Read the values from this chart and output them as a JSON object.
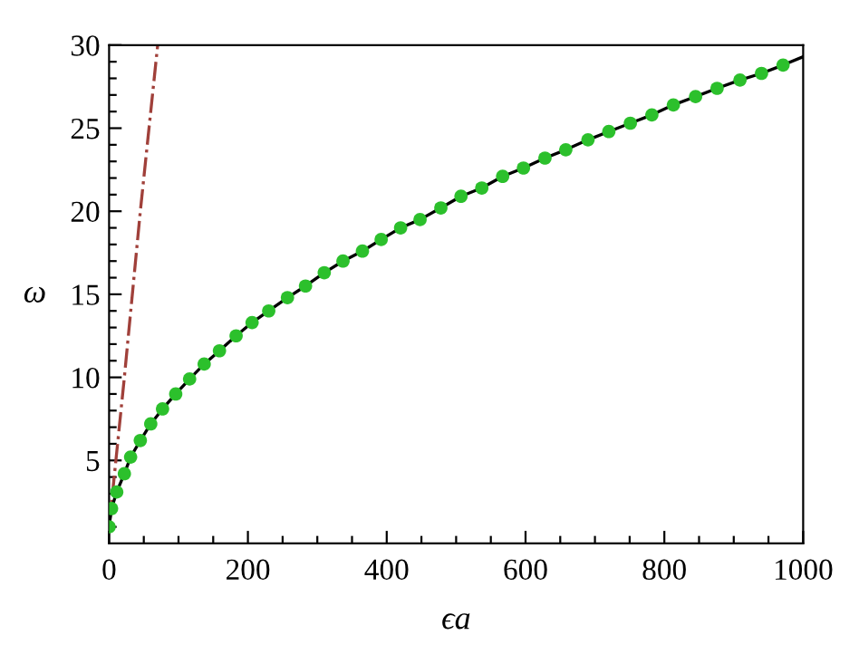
{
  "chart_data": {
    "type": "line",
    "xlabel": "ϵa",
    "ylabel": "ω",
    "xlim": [
      0,
      1000
    ],
    "ylim": [
      0,
      30
    ],
    "xticks": [
      0,
      {
        "value": 50,
        "label": null
      },
      {
        "value": 100,
        "label": null
      },
      {
        "value": 150,
        "label": null
      },
      200,
      {
        "value": 250,
        "label": null
      },
      {
        "value": 300,
        "label": null
      },
      {
        "value": 350,
        "label": null
      },
      400,
      {
        "value": 450,
        "label": null
      },
      {
        "value": 500,
        "label": null
      },
      {
        "value": 550,
        "label": null
      },
      600,
      {
        "value": 650,
        "label": null
      },
      {
        "value": 700,
        "label": null
      },
      {
        "value": 750,
        "label": null
      },
      800,
      {
        "value": 850,
        "label": null
      },
      {
        "value": 900,
        "label": null
      },
      {
        "value": 950,
        "label": null
      },
      1000
    ],
    "yticks": [
      {
        "value": 1,
        "label": null
      },
      {
        "value": 2,
        "label": null
      },
      {
        "value": 3,
        "label": null
      },
      {
        "value": 4,
        "label": null
      },
      5,
      {
        "value": 6,
        "label": null
      },
      {
        "value": 7,
        "label": null
      },
      {
        "value": 8,
        "label": null
      },
      {
        "value": 9,
        "label": null
      },
      10,
      {
        "value": 11,
        "label": null
      },
      {
        "value": 12,
        "label": null
      },
      {
        "value": 13,
        "label": null
      },
      {
        "value": 14,
        "label": null
      },
      15,
      {
        "value": 16,
        "label": null
      },
      {
        "value": 17,
        "label": null
      },
      {
        "value": 18,
        "label": null
      },
      {
        "value": 19,
        "label": null
      },
      20,
      {
        "value": 21,
        "label": null
      },
      {
        "value": 22,
        "label": null
      },
      {
        "value": 23,
        "label": null
      },
      {
        "value": 24,
        "label": null
      },
      25,
      {
        "value": 26,
        "label": null
      },
      {
        "value": 27,
        "label": null
      },
      {
        "value": 28,
        "label": null
      },
      {
        "value": 29,
        "label": null
      },
      30
    ],
    "grid": false,
    "legend": false,
    "series": [
      {
        "color": "#a0403a",
        "line_style": "dashdot",
        "marker": "none",
        "x": [
          0,
          22,
          45,
          70
        ],
        "values": [
          1.0,
          10,
          20,
          30
        ]
      },
      {
        "color": "#000000",
        "line_style": "solid",
        "marker": "none",
        "x": [
          0,
          3.5,
          11,
          22,
          31,
          45,
          60,
          77,
          96,
          116,
          137,
          159,
          183,
          206,
          230,
          257,
          283,
          310,
          337,
          365,
          392,
          420,
          448,
          478,
          507,
          537,
          567,
          597,
          628,
          658,
          690,
          720,
          751,
          782,
          813,
          845,
          876,
          909,
          940,
          971,
          1000
        ],
        "values": [
          1.0,
          2.1,
          3.1,
          4.2,
          5.2,
          6.2,
          7.2,
          8.1,
          9.0,
          9.9,
          10.8,
          11.6,
          12.5,
          13.3,
          14.0,
          14.8,
          15.5,
          16.3,
          17.0,
          17.6,
          18.3,
          19.0,
          19.5,
          20.2,
          20.9,
          21.4,
          22.1,
          22.6,
          23.2,
          23.7,
          24.3,
          24.8,
          25.3,
          25.8,
          26.4,
          26.9,
          27.4,
          27.9,
          28.3,
          28.8,
          29.3
        ]
      },
      {
        "type": "scatter",
        "color": "#2cc02c",
        "marker": "circle",
        "x": [
          0,
          3.5,
          11,
          22,
          31,
          45,
          60,
          77,
          96,
          116,
          137,
          159,
          183,
          206,
          230,
          257,
          283,
          310,
          337,
          365,
          392,
          420,
          448,
          478,
          507,
          537,
          567,
          597,
          628,
          658,
          690,
          720,
          751,
          782,
          813,
          845,
          876,
          909,
          940,
          971
        ],
        "values": [
          1.0,
          2.1,
          3.1,
          4.2,
          5.2,
          6.2,
          7.2,
          8.1,
          9.0,
          9.9,
          10.8,
          11.6,
          12.5,
          13.3,
          14.0,
          14.8,
          15.5,
          16.3,
          17.0,
          17.6,
          18.3,
          19.0,
          19.5,
          20.2,
          20.9,
          21.4,
          22.1,
          22.6,
          23.2,
          23.7,
          24.3,
          24.8,
          25.3,
          25.8,
          26.4,
          26.9,
          27.4,
          27.9,
          28.3,
          28.8
        ]
      }
    ]
  }
}
